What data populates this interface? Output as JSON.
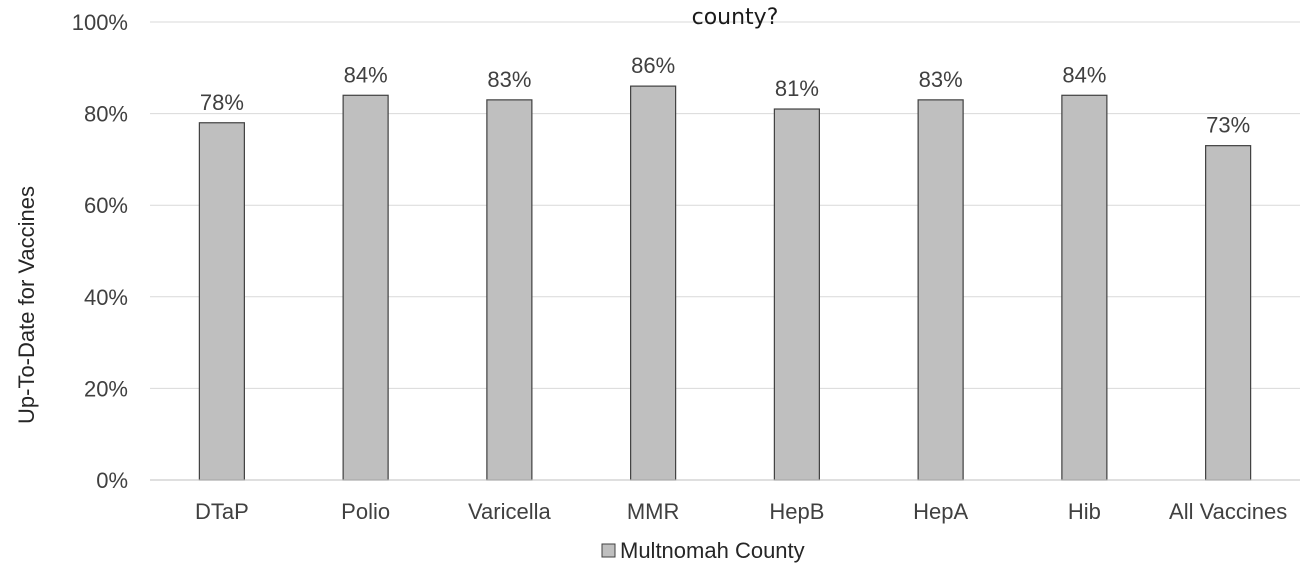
{
  "chart_data": {
    "type": "bar",
    "title": "county?",
    "ylabel": "Up-To-Date for Vaccines",
    "xlabel": "",
    "categories": [
      "DTaP",
      "Polio",
      "Varicella",
      "MMR",
      "HepB",
      "HepA",
      "Hib",
      "All Vaccines"
    ],
    "series": [
      {
        "name": "Multnomah County",
        "values": [
          78,
          84,
          83,
          86,
          81,
          83,
          84,
          73
        ],
        "labels": [
          "78%",
          "84%",
          "83%",
          "86%",
          "81%",
          "83%",
          "84%",
          "73%"
        ],
        "color": "#bfbfbf"
      }
    ],
    "ylim": [
      0,
      100
    ],
    "yticks": [
      "0%",
      "20%",
      "40%",
      "60%",
      "80%",
      "100%"
    ],
    "grid": true,
    "legend_position": "bottom"
  }
}
